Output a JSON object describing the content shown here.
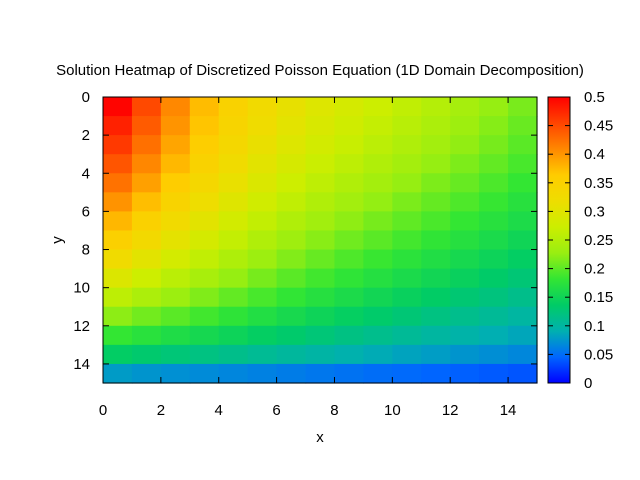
{
  "chart_data": {
    "type": "heatmap",
    "title": "Solution Heatmap of Discretized Poisson Equation (1D Domain Decomposition)",
    "xlabel": "x",
    "ylabel": "y",
    "x_ticks": [
      "0",
      "2",
      "4",
      "6",
      "8",
      "10",
      "12",
      "14"
    ],
    "y_ticks": [
      "0",
      "2",
      "4",
      "6",
      "8",
      "10",
      "12",
      "14"
    ],
    "colorbar_ticks": [
      "0",
      "0.05",
      "0.1",
      "0.15",
      "0.2",
      "0.25",
      "0.3",
      "0.35",
      "0.4",
      "0.45",
      "0.5"
    ],
    "colorbar_range": [
      0,
      0.5
    ],
    "xlim": [
      0,
      15
    ],
    "ylim": [
      0,
      15
    ],
    "y_axis_inverted": true,
    "grid_size": [
      15,
      15
    ],
    "colormap": [
      "#0000ff",
      "#0066ff",
      "#00b0b0",
      "#00cc66",
      "#33e633",
      "#99ee11",
      "#ccee00",
      "#eedd00",
      "#ffcc00",
      "#ff8800",
      "#ff4400",
      "#ff0000"
    ],
    "values": [
      [
        0.497,
        0.451,
        0.409,
        0.374,
        0.347,
        0.325,
        0.309,
        0.295,
        0.283,
        0.273,
        0.262,
        0.251,
        0.239,
        0.226,
        0.213
      ],
      [
        0.478,
        0.439,
        0.401,
        0.368,
        0.341,
        0.32,
        0.303,
        0.289,
        0.277,
        0.266,
        0.255,
        0.244,
        0.232,
        0.219,
        0.206
      ],
      [
        0.462,
        0.425,
        0.39,
        0.359,
        0.333,
        0.312,
        0.295,
        0.281,
        0.269,
        0.258,
        0.247,
        0.236,
        0.224,
        0.212,
        0.199
      ],
      [
        0.443,
        0.41,
        0.377,
        0.348,
        0.323,
        0.302,
        0.285,
        0.271,
        0.259,
        0.248,
        0.237,
        0.226,
        0.215,
        0.203,
        0.191
      ],
      [
        0.424,
        0.393,
        0.362,
        0.335,
        0.311,
        0.291,
        0.274,
        0.26,
        0.248,
        0.237,
        0.226,
        0.215,
        0.205,
        0.193,
        0.182
      ],
      [
        0.402,
        0.373,
        0.345,
        0.319,
        0.297,
        0.278,
        0.262,
        0.248,
        0.236,
        0.225,
        0.214,
        0.204,
        0.194,
        0.183,
        0.172
      ],
      [
        0.378,
        0.351,
        0.326,
        0.302,
        0.281,
        0.264,
        0.248,
        0.235,
        0.223,
        0.212,
        0.202,
        0.192,
        0.182,
        0.172,
        0.162
      ],
      [
        0.352,
        0.328,
        0.305,
        0.284,
        0.265,
        0.248,
        0.233,
        0.22,
        0.209,
        0.199,
        0.189,
        0.179,
        0.17,
        0.16,
        0.151
      ],
      [
        0.323,
        0.302,
        0.282,
        0.263,
        0.246,
        0.231,
        0.217,
        0.205,
        0.194,
        0.184,
        0.175,
        0.166,
        0.157,
        0.148,
        0.139
      ],
      [
        0.293,
        0.274,
        0.257,
        0.241,
        0.226,
        0.212,
        0.199,
        0.188,
        0.178,
        0.169,
        0.16,
        0.152,
        0.144,
        0.135,
        0.127
      ],
      [
        0.259,
        0.244,
        0.23,
        0.216,
        0.203,
        0.191,
        0.18,
        0.17,
        0.161,
        0.152,
        0.144,
        0.137,
        0.129,
        0.122,
        0.114
      ],
      [
        0.222,
        0.21,
        0.199,
        0.188,
        0.177,
        0.167,
        0.158,
        0.149,
        0.141,
        0.134,
        0.127,
        0.12,
        0.113,
        0.107,
        0.1
      ],
      [
        0.182,
        0.173,
        0.164,
        0.156,
        0.148,
        0.14,
        0.133,
        0.126,
        0.119,
        0.113,
        0.107,
        0.101,
        0.096,
        0.09,
        0.085
      ],
      [
        0.138,
        0.132,
        0.126,
        0.12,
        0.114,
        0.108,
        0.103,
        0.098,
        0.093,
        0.088,
        0.083,
        0.079,
        0.074,
        0.07,
        0.066
      ],
      [
        0.078,
        0.074,
        0.071,
        0.068,
        0.065,
        0.062,
        0.059,
        0.056,
        0.053,
        0.05,
        0.048,
        0.045,
        0.043,
        0.04,
        0.038
      ]
    ]
  }
}
